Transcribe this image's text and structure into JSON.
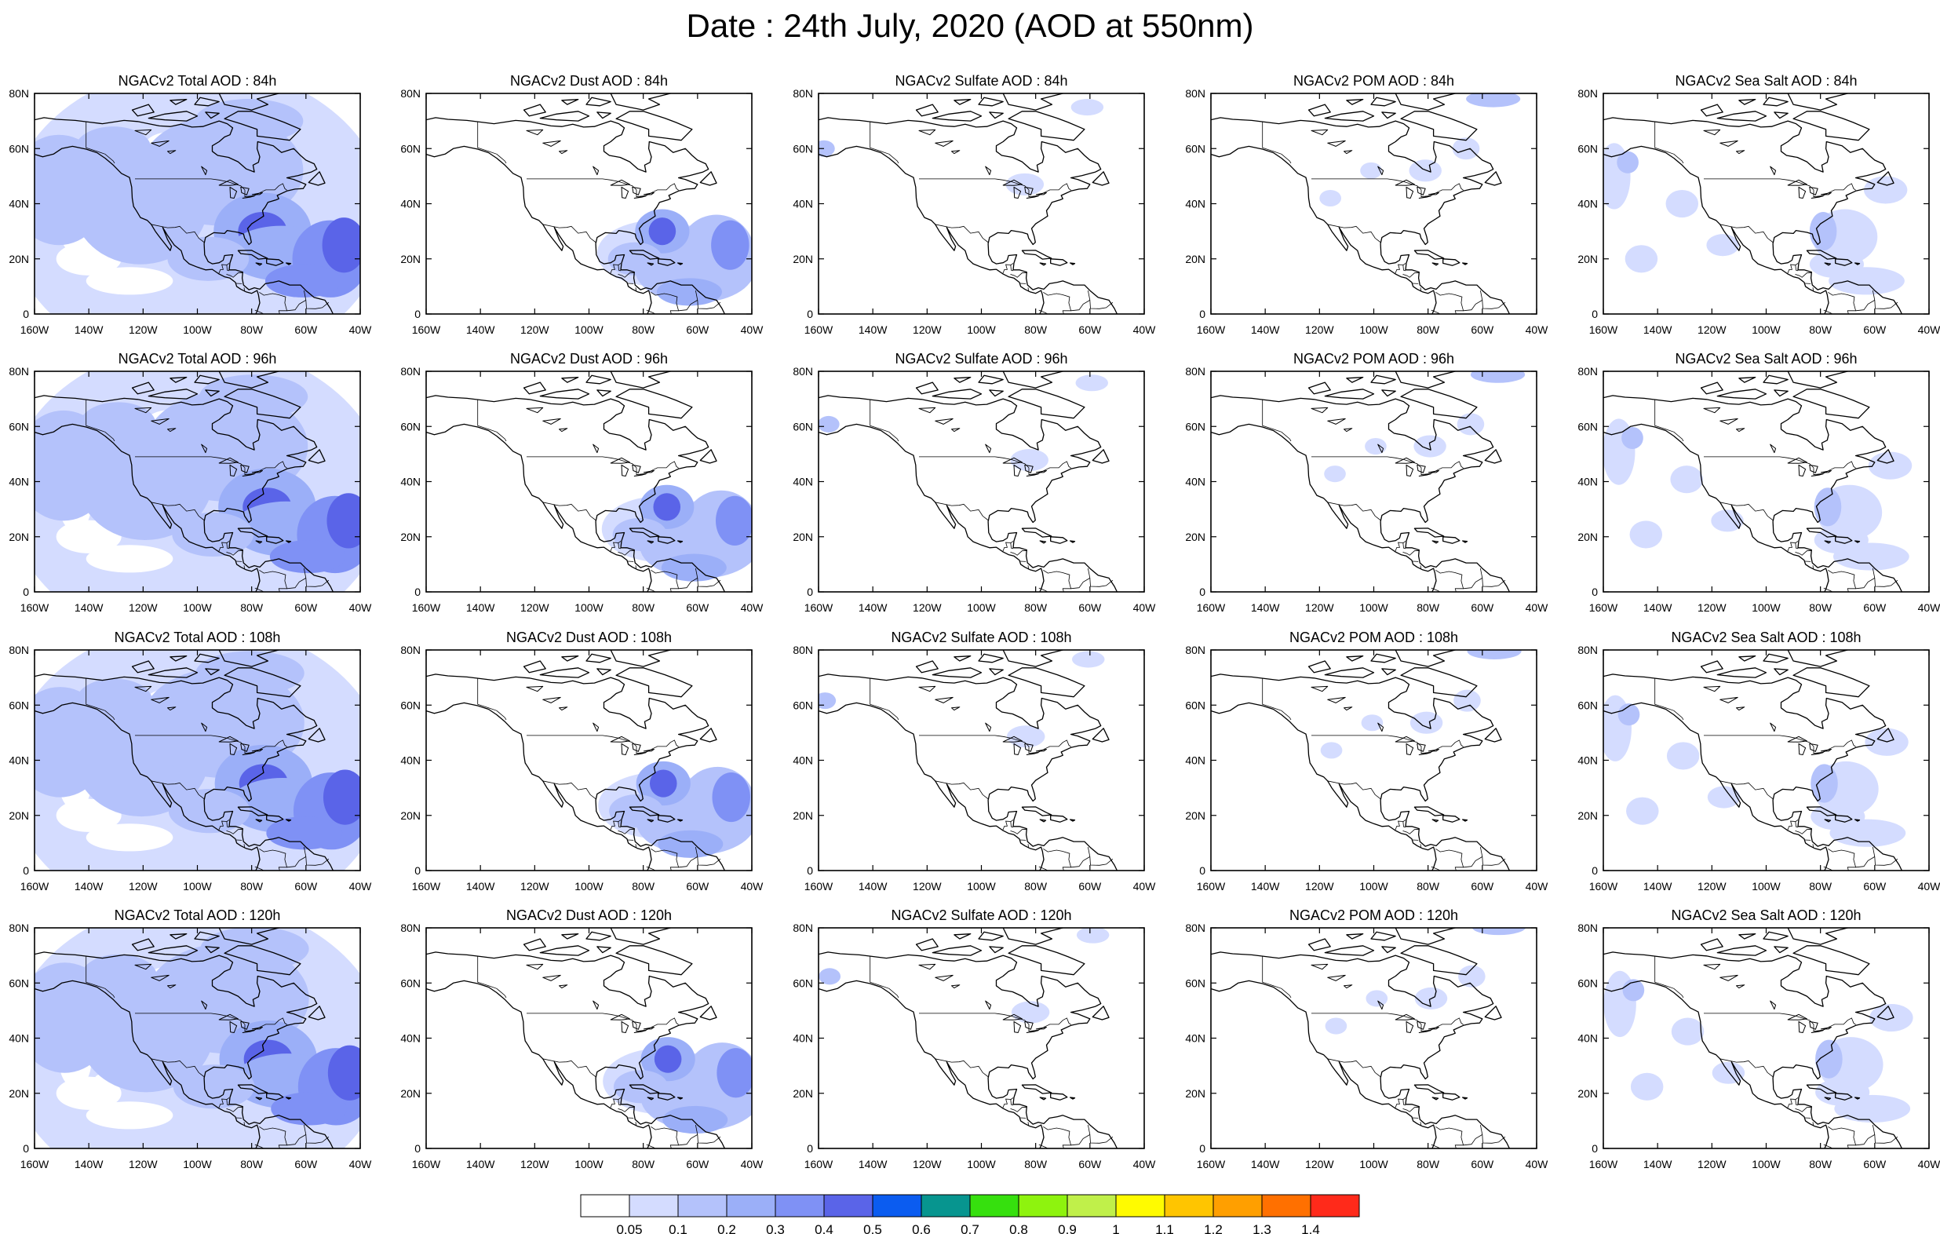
{
  "title": "Date : 24th July, 2020 (AOD at 550nm)",
  "lat_ticks": [
    "80N",
    "60N",
    "40N",
    "20N",
    "0"
  ],
  "lon_ticks": [
    "160W",
    "140W",
    "120W",
    "100W",
    "80W",
    "60W",
    "40W"
  ],
  "panels": [
    [
      {
        "title": "NGACv2 Total AOD : 84h",
        "field": "total"
      },
      {
        "title": "NGACv2 Dust AOD : 84h",
        "field": "dust"
      },
      {
        "title": "NGACv2 Sulfate AOD : 84h",
        "field": "sulfate"
      },
      {
        "title": "NGACv2 POM AOD : 84h",
        "field": "pom"
      },
      {
        "title": "NGACv2 Sea Salt AOD : 84h",
        "field": "seasalt"
      }
    ],
    [
      {
        "title": "NGACv2 Total AOD : 96h",
        "field": "total"
      },
      {
        "title": "NGACv2 Dust AOD : 96h",
        "field": "dust"
      },
      {
        "title": "NGACv2 Sulfate AOD : 96h",
        "field": "sulfate"
      },
      {
        "title": "NGACv2 POM AOD : 96h",
        "field": "pom"
      },
      {
        "title": "NGACv2 Sea Salt AOD : 96h",
        "field": "seasalt"
      }
    ],
    [
      {
        "title": "NGACv2 Total AOD : 108h",
        "field": "total"
      },
      {
        "title": "NGACv2 Dust AOD : 108h",
        "field": "dust"
      },
      {
        "title": "NGACv2 Sulfate AOD : 108h",
        "field": "sulfate"
      },
      {
        "title": "NGACv2 POM AOD : 108h",
        "field": "pom"
      },
      {
        "title": "NGACv2 Sea Salt AOD : 108h",
        "field": "seasalt"
      }
    ],
    [
      {
        "title": "NGACv2 Total AOD : 120h",
        "field": "total"
      },
      {
        "title": "NGACv2 Dust AOD : 120h",
        "field": "dust"
      },
      {
        "title": "NGACv2 Sulfate AOD : 120h",
        "field": "sulfate"
      },
      {
        "title": "NGACv2 POM AOD : 120h",
        "field": "pom"
      },
      {
        "title": "NGACv2 Sea Salt  AOD : 120h",
        "field": "seasalt"
      }
    ]
  ],
  "colorbar": {
    "colors": [
      "#ffffff",
      "#d4dcff",
      "#b4c2fb",
      "#9baff8",
      "#7f91f5",
      "#5a64e8",
      "#0b5cf0",
      "#07958f",
      "#36e00e",
      "#8ef30e",
      "#c0f04a",
      "#fffb00",
      "#ffc500",
      "#ff9f00",
      "#ff7000",
      "#ff2a1a"
    ],
    "labels": [
      "0.05",
      "0.1",
      "0.2",
      "0.3",
      "0.4",
      "0.5",
      "0.6",
      "0.7",
      "0.8",
      "0.9",
      "1",
      "1.1",
      "1.2",
      "1.3",
      "1.4"
    ]
  }
}
